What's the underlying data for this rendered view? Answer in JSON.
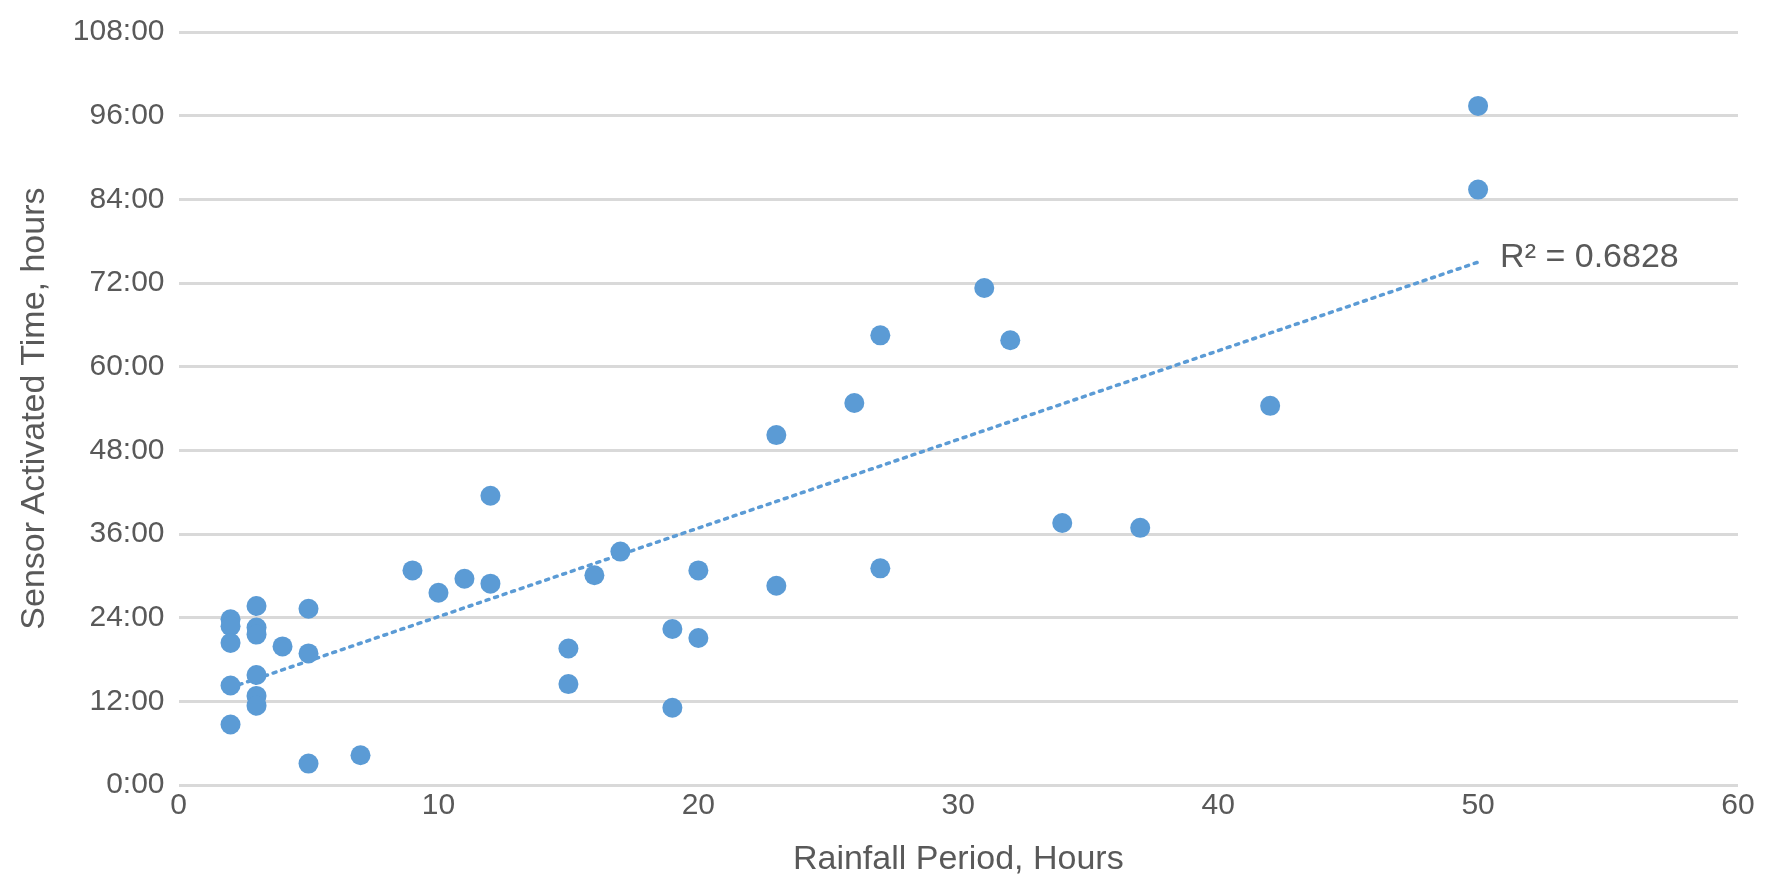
{
  "chart_data": {
    "type": "scatter",
    "xlabel": "Rainfall Period, Hours",
    "ylabel": "Sensor Activated Time, hours",
    "xlim": [
      0,
      60
    ],
    "xticks": [
      0,
      10,
      20,
      30,
      40,
      50,
      60
    ],
    "ylim": [
      0,
      108
    ],
    "yticks": [
      {
        "value": 0,
        "label": "0:00"
      },
      {
        "value": 12,
        "label": "12:00"
      },
      {
        "value": 24,
        "label": "24:00"
      },
      {
        "value": 36,
        "label": "36:00"
      },
      {
        "value": 48,
        "label": "48:00"
      },
      {
        "value": 60,
        "label": "60:00"
      },
      {
        "value": 72,
        "label": "72:00"
      },
      {
        "value": 84,
        "label": "84:00"
      },
      {
        "value": 96,
        "label": "96:00"
      },
      {
        "value": 108,
        "label": "108:00"
      }
    ],
    "grid": "y",
    "legend": false,
    "marker": "circle",
    "series": [
      {
        "type": "scatter",
        "color": "#5b9bd5",
        "x": [
          2,
          2,
          2,
          2,
          2,
          3,
          3,
          3,
          3,
          3,
          3,
          4,
          5,
          5,
          5,
          7,
          9,
          10,
          11,
          12,
          12,
          15,
          15,
          16,
          17,
          19,
          19,
          20,
          20,
          23,
          23,
          26,
          27,
          27,
          31,
          32,
          34,
          37,
          42,
          50,
          50
        ],
        "values": [
          23.8,
          22.8,
          20.4,
          14.3,
          8.7,
          25.7,
          22.6,
          21.6,
          15.8,
          12.8,
          11.4,
          19.9,
          25.3,
          18.9,
          3.1,
          4.3,
          30.8,
          27.6,
          29.6,
          28.9,
          41.5,
          19.6,
          14.5,
          30.1,
          33.5,
          22.4,
          11.1,
          30.8,
          21.1,
          50.2,
          28.6,
          54.8,
          64.5,
          31.1,
          71.3,
          63.8,
          37.6,
          36.9,
          54.4,
          97.4,
          85.4
        ]
      },
      {
        "type": "line",
        "color": "#5b9bd5",
        "line_style": "dotted",
        "marker": "none",
        "x": [
          2,
          50
        ],
        "values": [
          14,
          75
        ]
      }
    ],
    "annotations": [
      {
        "text": "R² = 0.6828",
        "x": 50,
        "y": 75
      }
    ]
  }
}
